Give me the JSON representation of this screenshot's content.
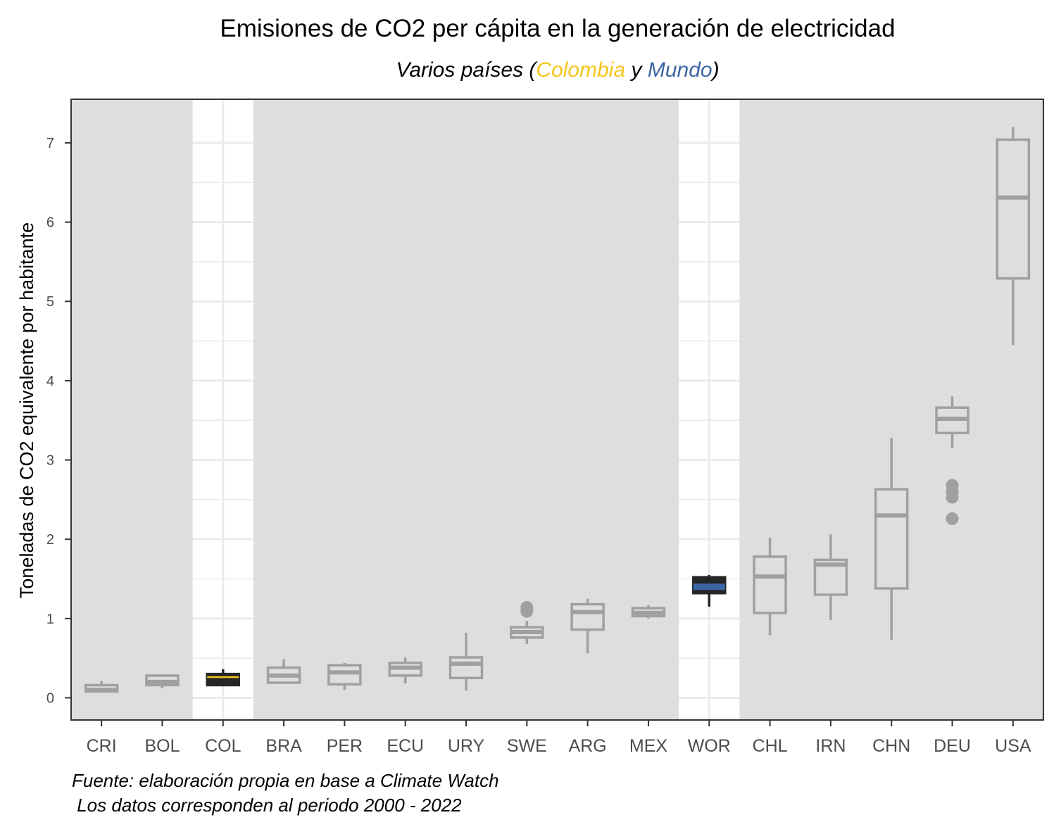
{
  "colors": {
    "colombia": "#F5C518",
    "mundo": "#3B65A5",
    "box_default": "#A0A0A0",
    "highlight_box": "#262626",
    "panel_bg": "#DEDEDE",
    "highlight_bg": "#FFFFFF",
    "grid": "#EBEBEB"
  },
  "chart_data": {
    "type": "boxplot",
    "title": "Emisiones de CO2 per cápita en la generación de electricidad",
    "subtitle": {
      "prefix": "Varios países (",
      "colombia": "Colombia",
      "middle": " y ",
      "mundo": "Mundo",
      "suffix": ")"
    },
    "ylabel": "Toneladas de CO2 equivalente por habitante",
    "xlabel": "",
    "ylim": [
      -0.28,
      7.55
    ],
    "yticks": [
      0,
      1,
      2,
      3,
      4,
      5,
      6,
      7
    ],
    "grid": true,
    "highlighted": [
      "COL",
      "WOR"
    ],
    "categories": [
      "CRI",
      "BOL",
      "COL",
      "BRA",
      "PER",
      "ECU",
      "URY",
      "SWE",
      "ARG",
      "MEX",
      "WOR",
      "CHL",
      "IRN",
      "CHN",
      "DEU",
      "USA"
    ],
    "boxes": [
      {
        "category": "CRI",
        "min": 0.07,
        "q1": 0.08,
        "median": 0.1,
        "q3": 0.16,
        "max": 0.21,
        "outliers": []
      },
      {
        "category": "BOL",
        "min": 0.12,
        "q1": 0.16,
        "median": 0.2,
        "q3": 0.28,
        "max": 0.29,
        "outliers": []
      },
      {
        "category": "COL",
        "min": 0.16,
        "q1": 0.16,
        "median": 0.26,
        "q3": 0.3,
        "max": 0.36,
        "outliers": []
      },
      {
        "category": "BRA",
        "min": 0.18,
        "q1": 0.19,
        "median": 0.28,
        "q3": 0.38,
        "max": 0.49,
        "outliers": []
      },
      {
        "category": "PER",
        "min": 0.1,
        "q1": 0.17,
        "median": 0.32,
        "q3": 0.41,
        "max": 0.44,
        "outliers": []
      },
      {
        "category": "ECU",
        "min": 0.18,
        "q1": 0.28,
        "median": 0.38,
        "q3": 0.44,
        "max": 0.51,
        "outliers": []
      },
      {
        "category": "URY",
        "min": 0.09,
        "q1": 0.25,
        "median": 0.43,
        "q3": 0.51,
        "max": 0.82,
        "outliers": []
      },
      {
        "category": "SWE",
        "min": 0.68,
        "q1": 0.76,
        "median": 0.83,
        "q3": 0.89,
        "max": 0.97,
        "outliers": [
          1.09,
          1.12,
          1.14
        ]
      },
      {
        "category": "ARG",
        "min": 0.56,
        "q1": 0.86,
        "median": 1.08,
        "q3": 1.18,
        "max": 1.25,
        "outliers": []
      },
      {
        "category": "MEX",
        "min": 1.0,
        "q1": 1.03,
        "median": 1.07,
        "q3": 1.13,
        "max": 1.17,
        "outliers": []
      },
      {
        "category": "WOR",
        "min": 1.15,
        "q1": 1.32,
        "median": 1.4,
        "q3": 1.52,
        "max": 1.55,
        "outliers": []
      },
      {
        "category": "CHL",
        "min": 0.79,
        "q1": 1.07,
        "median": 1.53,
        "q3": 1.78,
        "max": 2.02,
        "outliers": []
      },
      {
        "category": "IRN",
        "min": 0.98,
        "q1": 1.3,
        "median": 1.68,
        "q3": 1.74,
        "max": 2.06,
        "outliers": []
      },
      {
        "category": "CHN",
        "min": 0.73,
        "q1": 1.38,
        "median": 2.3,
        "q3": 2.63,
        "max": 3.28,
        "outliers": []
      },
      {
        "category": "DEU",
        "min": 3.15,
        "q1": 3.34,
        "median": 3.52,
        "q3": 3.66,
        "max": 3.8,
        "outliers": [
          2.26,
          2.53,
          2.6,
          2.68
        ]
      },
      {
        "category": "USA",
        "min": 4.45,
        "q1": 5.29,
        "median": 6.31,
        "q3": 7.04,
        "max": 7.2,
        "outliers": []
      }
    ],
    "caption": [
      "Fuente: elaboración propia en base a Climate Watch",
      " Los datos corresponden al periodo 2000 - 2022"
    ]
  }
}
